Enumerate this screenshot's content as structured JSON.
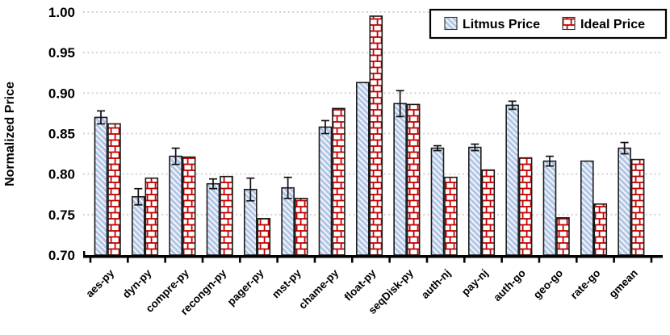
{
  "chart_data": {
    "type": "bar",
    "title": "",
    "xlabel": "",
    "ylabel": "Normalized Price",
    "ylim": [
      0.7,
      1.0
    ],
    "ytick_step": 0.05,
    "ytick_labels": [
      "1.00",
      "0.95",
      "0.90",
      "0.85",
      "0.80",
      "0.75",
      "0.70"
    ],
    "grid": "horizontal-dotted",
    "legend_position": "top-right",
    "categories": [
      "aes-py",
      "dyn-py",
      "compre-py",
      "recongn-py",
      "pager-py",
      "mst-py",
      "chame-py",
      "float-py",
      "seqDisk-py",
      "auth-nj",
      "pay-nj",
      "auth-go",
      "geo-go",
      "rate-go",
      "gmean"
    ],
    "series": [
      {
        "name": "Litmus Price",
        "pattern": "diagonal-hatch",
        "values": [
          0.87,
          0.772,
          0.822,
          0.788,
          0.781,
          0.783,
          0.858,
          0.913,
          0.887,
          0.832,
          0.833,
          0.885,
          0.816,
          0.816,
          0.832
        ],
        "errors": [
          0.008,
          0.01,
          0.01,
          0.006,
          0.014,
          0.013,
          0.008,
          0.0,
          0.016,
          0.003,
          0.004,
          0.005,
          0.006,
          0.0,
          0.007
        ]
      },
      {
        "name": "Ideal Price",
        "pattern": "brick",
        "values": [
          0.862,
          0.795,
          0.821,
          0.797,
          0.745,
          0.77,
          0.881,
          0.995,
          0.886,
          0.796,
          0.805,
          0.82,
          0.746,
          0.763,
          0.818
        ],
        "errors": null
      }
    ]
  },
  "colors": {
    "litmus_hatch": "#b4c7e7",
    "ideal_brick": "#c40000",
    "bar_outline": "#1a1a1a",
    "grid_line": "#d2d2d2",
    "axis_line": "#000000",
    "text": "#000000",
    "error_bar": "#111111",
    "background": "#ffffff",
    "legend_border": "#000000"
  }
}
